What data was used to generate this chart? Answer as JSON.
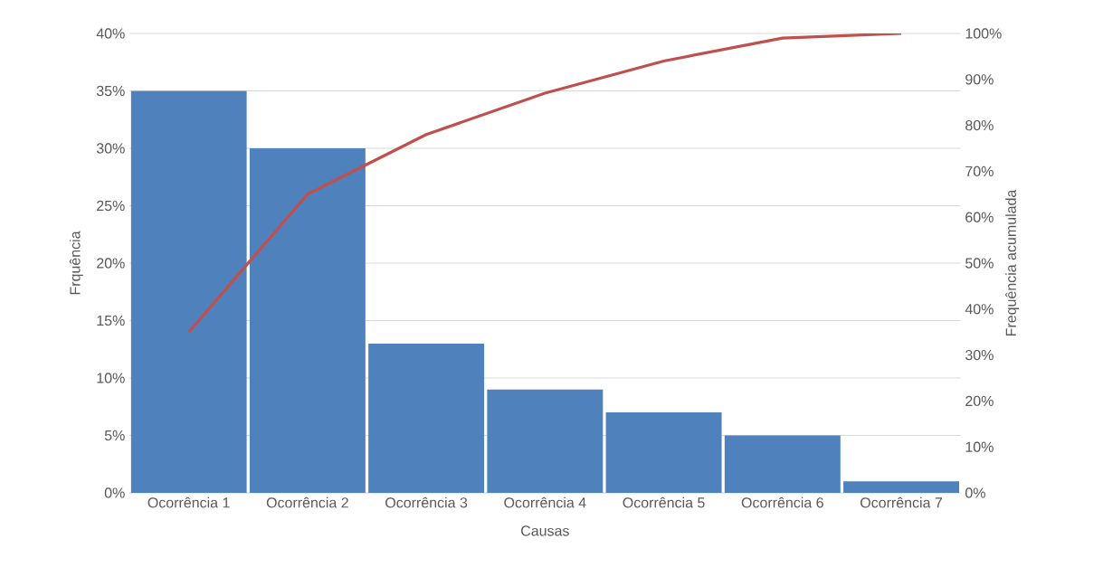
{
  "chart_data": {
    "type": "bar",
    "xlabel": "Causas",
    "ylabel": "Frquência",
    "y2label": "Frequência acumulada",
    "categories": [
      "Ocorrência 1",
      "Ocorrência 2",
      "Ocorrência 3",
      "Ocorrência 4",
      "Ocorrência 5",
      "Ocorrência 6",
      "Ocorrência 7"
    ],
    "series": [
      {
        "color": "#4f81bd",
        "values": [
          35,
          30,
          13,
          9,
          7,
          5,
          1
        ]
      },
      {
        "type": "line",
        "axis": "y2",
        "color": "#c0504d",
        "marker": "none",
        "line_style": "solid",
        "values": [
          35,
          65,
          78,
          87,
          94,
          99,
          100
        ]
      }
    ],
    "ylim": [
      0,
      40
    ],
    "yticks": [
      {
        "value": 0,
        "label": "0%"
      },
      {
        "value": 5,
        "label": "5%"
      },
      {
        "value": 10,
        "label": "10%"
      },
      {
        "value": 15,
        "label": "15%"
      },
      {
        "value": 20,
        "label": "20%"
      },
      {
        "value": 25,
        "label": "25%"
      },
      {
        "value": 30,
        "label": "30%"
      },
      {
        "value": 35,
        "label": "35%"
      },
      {
        "value": 40,
        "label": "40%"
      }
    ],
    "y2lim": [
      0,
      100
    ],
    "y2ticks": [
      {
        "value": 0,
        "label": "0%"
      },
      {
        "value": 10,
        "label": "10%"
      },
      {
        "value": 20,
        "label": "20%"
      },
      {
        "value": 30,
        "label": "30%"
      },
      {
        "value": 40,
        "label": "40%"
      },
      {
        "value": 50,
        "label": "50%"
      },
      {
        "value": 60,
        "label": "60%"
      },
      {
        "value": 70,
        "label": "70%"
      },
      {
        "value": 80,
        "label": "80%"
      },
      {
        "value": 90,
        "label": "90%"
      },
      {
        "value": 100,
        "label": "100%"
      }
    ],
    "grid": "y"
  }
}
